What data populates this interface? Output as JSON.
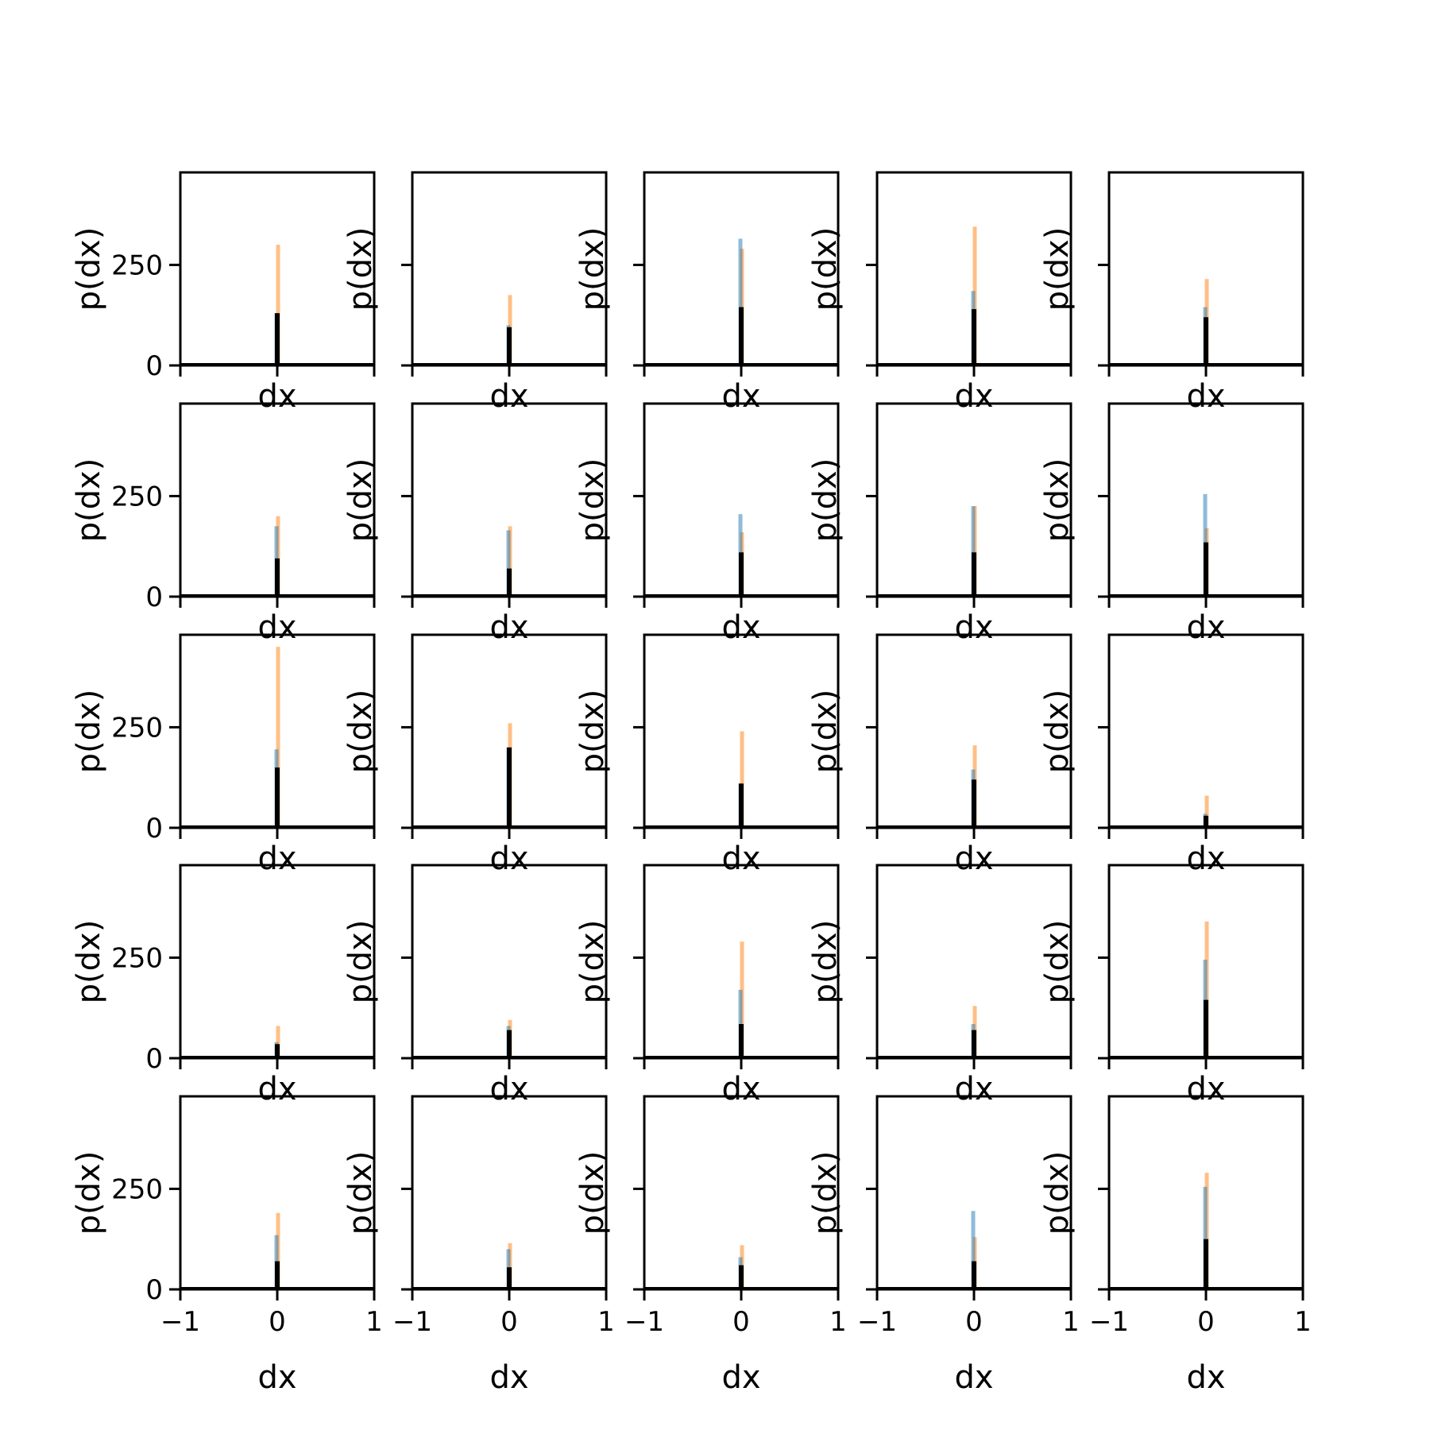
{
  "chart_data": {
    "type": "histogram-grid",
    "rows": 5,
    "cols": 5,
    "xlabel": "dx",
    "ylabel": "p(dx)",
    "xlim": [
      -1,
      1
    ],
    "ylim": [
      0,
      480
    ],
    "xticks": [
      -1,
      0,
      1
    ],
    "xtick_labels": [
      "−1",
      "0",
      "1"
    ],
    "yticks": [
      0,
      250
    ],
    "ytick_labels": [
      "0",
      "250"
    ],
    "colors": {
      "blue": "#1f77b4",
      "orange": "#ff7f0e",
      "black": "#000000"
    },
    "panels": [
      {
        "peaks": {
          "blue": 130,
          "orange": 300,
          "black": 130
        }
      },
      {
        "peaks": {
          "blue": 100,
          "orange": 175,
          "black": 95
        }
      },
      {
        "peaks": {
          "blue": 315,
          "orange": 290,
          "black": 145
        }
      },
      {
        "peaks": {
          "blue": 185,
          "orange": 345,
          "black": 140
        }
      },
      {
        "peaks": {
          "blue": 145,
          "orange": 215,
          "black": 120
        }
      },
      {
        "peaks": {
          "blue": 175,
          "orange": 200,
          "black": 95
        }
      },
      {
        "peaks": {
          "blue": 165,
          "orange": 175,
          "black": 70
        }
      },
      {
        "peaks": {
          "blue": 205,
          "orange": 160,
          "black": 110
        }
      },
      {
        "peaks": {
          "blue": 225,
          "orange": 225,
          "black": 110
        }
      },
      {
        "peaks": {
          "blue": 255,
          "orange": 170,
          "black": 135
        }
      },
      {
        "peaks": {
          "blue": 195,
          "orange": 450,
          "black": 150
        }
      },
      {
        "peaks": {
          "blue": 200,
          "orange": 260,
          "black": 200
        }
      },
      {
        "peaks": {
          "blue": 110,
          "orange": 240,
          "black": 110
        }
      },
      {
        "peaks": {
          "blue": 145,
          "orange": 205,
          "black": 120
        }
      },
      {
        "peaks": {
          "blue": 35,
          "orange": 80,
          "black": 30
        }
      },
      {
        "peaks": {
          "blue": 40,
          "orange": 80,
          "black": 35
        }
      },
      {
        "peaks": {
          "blue": 80,
          "orange": 95,
          "black": 70
        }
      },
      {
        "peaks": {
          "blue": 170,
          "orange": 290,
          "black": 85
        }
      },
      {
        "peaks": {
          "blue": 85,
          "orange": 130,
          "black": 70
        }
      },
      {
        "peaks": {
          "blue": 245,
          "orange": 340,
          "black": 145
        }
      },
      {
        "peaks": {
          "blue": 135,
          "orange": 190,
          "black": 70
        }
      },
      {
        "peaks": {
          "blue": 100,
          "orange": 115,
          "black": 55
        }
      },
      {
        "peaks": {
          "blue": 80,
          "orange": 110,
          "black": 60
        }
      },
      {
        "peaks": {
          "blue": 195,
          "orange": 130,
          "black": 70
        }
      },
      {
        "peaks": {
          "blue": 255,
          "orange": 290,
          "black": 125
        }
      }
    ]
  }
}
